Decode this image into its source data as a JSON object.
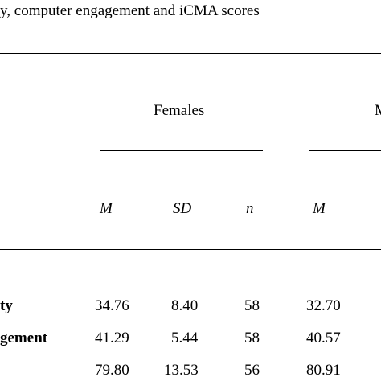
{
  "caption": "y, computer engagement and iCMA scores",
  "groups": {
    "females": "Females",
    "second_partial": "M"
  },
  "headers": {
    "m": "M",
    "sd": "SD",
    "n": "n",
    "m2": "M"
  },
  "rows": [
    {
      "label": "ty",
      "m": "34.76",
      "sd": "8.40",
      "n": "58",
      "m2": "32.70"
    },
    {
      "label": "gement",
      "m": "41.29",
      "sd": "5.44",
      "n": "58",
      "m2": "40.57"
    },
    {
      "label": "",
      "m": "79.80",
      "sd": "13.53",
      "n": "56",
      "m2": "80.91"
    }
  ]
}
